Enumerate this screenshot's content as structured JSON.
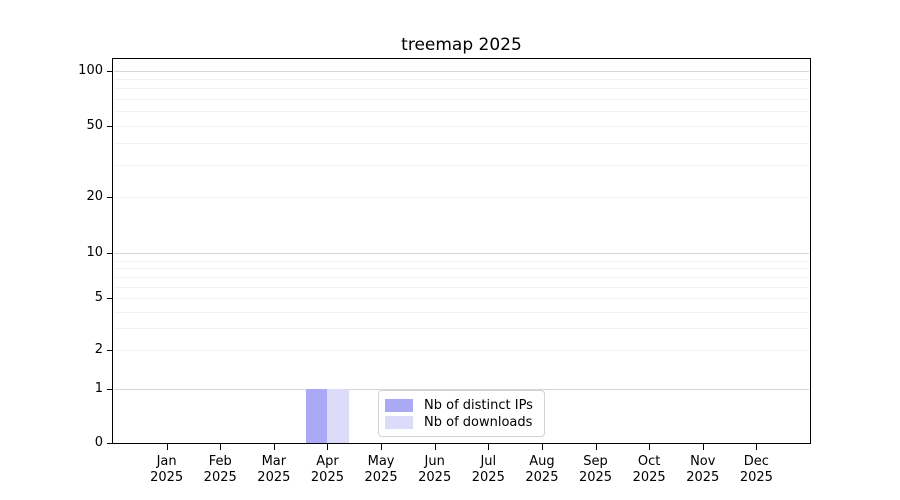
{
  "chart_data": {
    "type": "bar",
    "title": "treemap 2025",
    "categories": [
      "Jan",
      "Feb",
      "Mar",
      "Apr",
      "May",
      "Jun",
      "Jul",
      "Aug",
      "Sep",
      "Oct",
      "Nov",
      "Dec"
    ],
    "category_year": "2025",
    "series": [
      {
        "name": "Nb of distinct IPs",
        "color": "#a9a9f6",
        "values": [
          0,
          0,
          0,
          1,
          0,
          0,
          0,
          0,
          0,
          0,
          0,
          0
        ]
      },
      {
        "name": "Nb of downloads",
        "color": "#dcdcf9",
        "values": [
          0,
          0,
          0,
          1,
          0,
          0,
          0,
          0,
          0,
          0,
          0,
          0
        ]
      }
    ],
    "yscale": "symlog",
    "ylim": [
      0,
      116
    ],
    "yticks": [
      0,
      1,
      2,
      5,
      10,
      20,
      50,
      100
    ],
    "grid": "horizontal-minor-and-major",
    "legend_position": "lower center inside plot"
  },
  "colors": {
    "bar_distinct_ips": "#a9a9f6",
    "bar_downloads": "#dcdcf9",
    "grid_minor": "#f2f2f2",
    "grid_major": "#d6d6d6",
    "axis": "#000000",
    "background": "#ffffff",
    "legend_border": "#d2d2d2",
    "text": "#000000"
  }
}
